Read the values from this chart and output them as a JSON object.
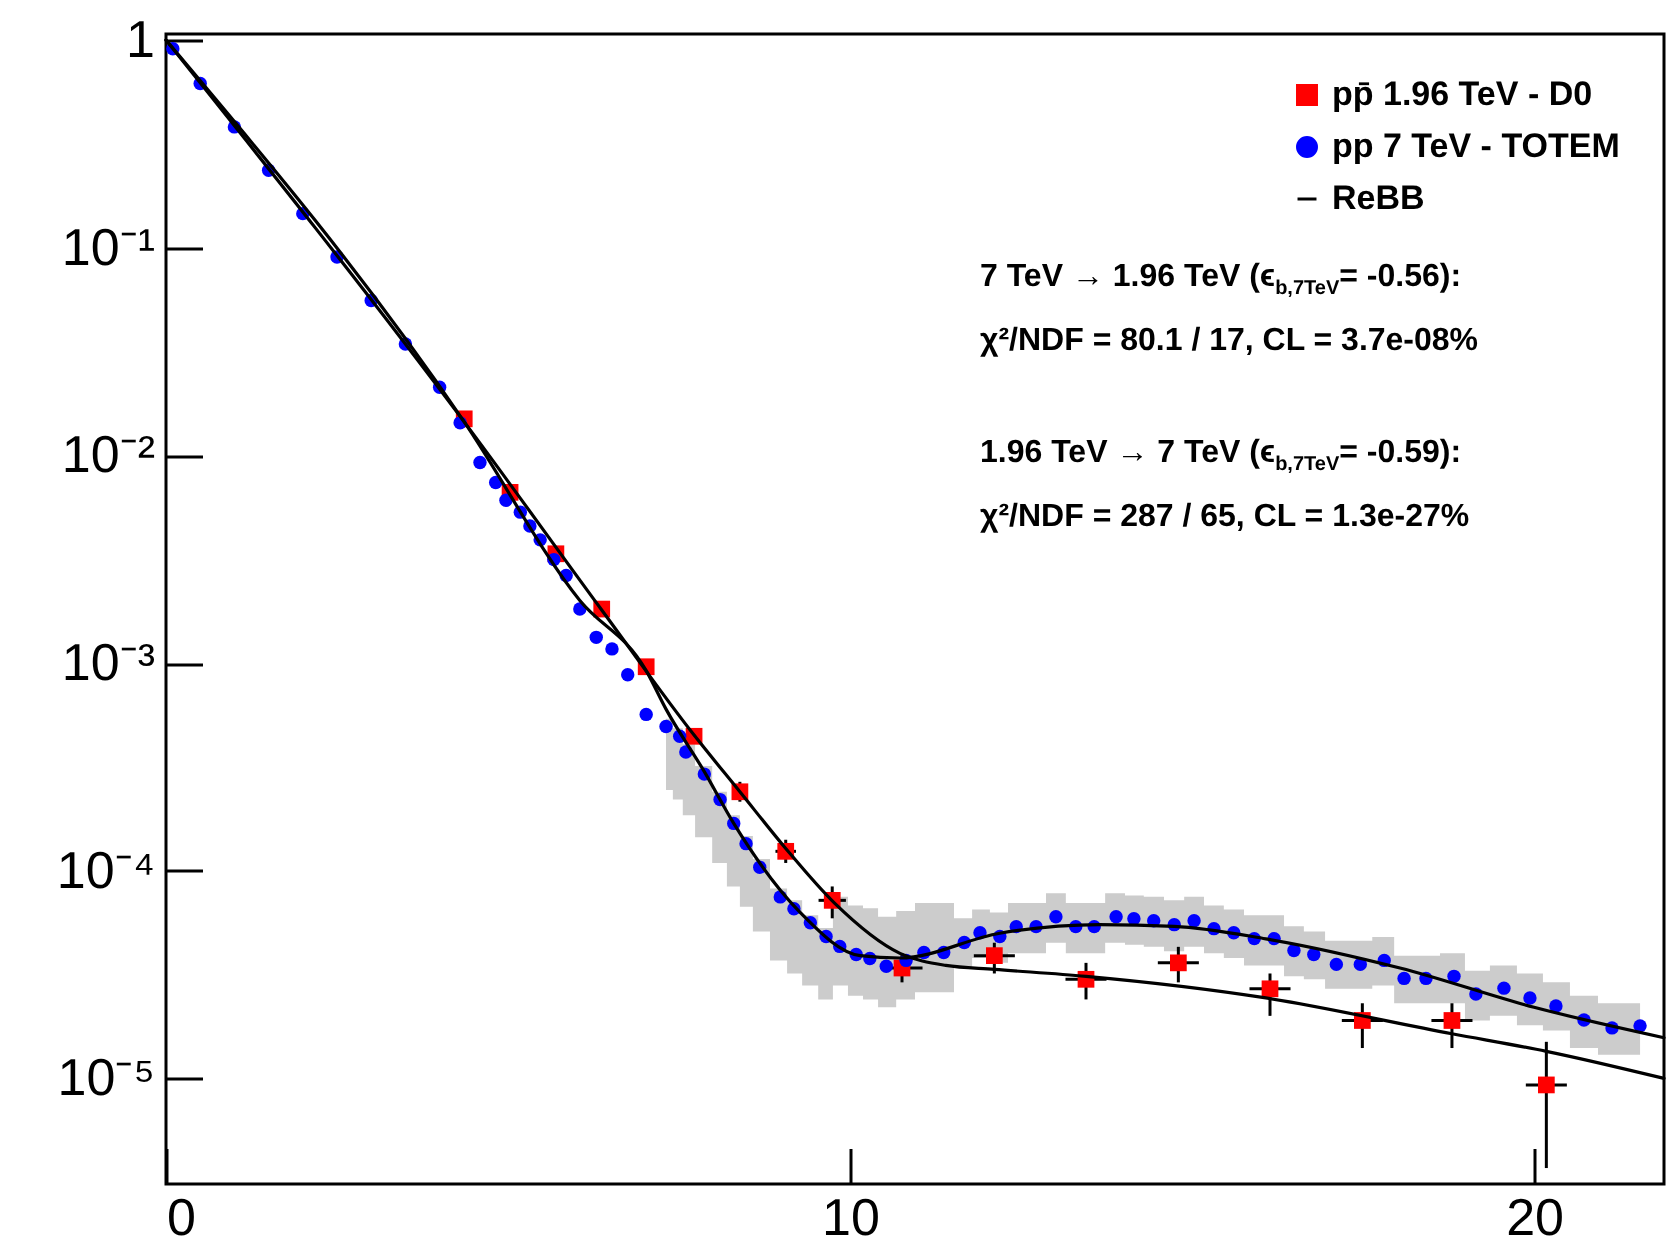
{
  "chart_data": {
    "type": "scatter",
    "log": "y",
    "xlim": [
      0,
      21.9
    ],
    "ylim": [
      3.1e-06,
      1.07
    ],
    "xticks": [
      0,
      10,
      20
    ],
    "yticks": [
      1,
      {
        "value": 0.1,
        "label": "10⁻¹"
      },
      {
        "value": 0.01,
        "label": "10⁻²"
      },
      {
        "value": 0.001,
        "label": "10⁻³"
      },
      {
        "value": 0.0001,
        "label": "10⁻⁴"
      },
      {
        "value": 1e-05,
        "label": "10⁻⁵"
      }
    ],
    "legend": "top right",
    "annotations": [
      "7 TeV → 1.96 TeV (ϵ$_{b,7TeV}$= -0.56):",
      "χ²/NDF = 80.1 / 17,  CL = 3.7e-08%",
      "1.96 TeV → 7 TeV  (ϵ$_{b,7TeV}$= -0.59):",
      "χ²/NDF = 287 / 65,  CL = 1.3e-27%"
    ],
    "series": [
      {
        "name": "pp̄ 1.96 TeV - D0",
        "marker": "square",
        "color": "#ff0000",
        "x": [
          4.36,
          5.03,
          5.7,
          6.37,
          7.02,
          7.72,
          8.39,
          9.06,
          9.74,
          10.76,
          12.11,
          13.45,
          14.8,
          16.14,
          17.49,
          18.8,
          20.18
        ],
        "values": [
          0.015,
          0.00664,
          0.00336,
          0.00182,
          0.00096,
          0.000444,
          0.00024,
          0.000124,
          7.2e-05,
          3.4e-05,
          3.9e-05,
          3e-05,
          3.6e-05,
          2.7e-05,
          1.9e-05,
          1.9e-05,
          9.3e-06
        ],
        "errors": [
          [
            0.014,
            0.0161
          ],
          [
            0.0062,
            0.0071
          ],
          [
            0.00315,
            0.0036
          ],
          [
            0.0017,
            0.00195
          ],
          [
            0.0009,
            0.00103
          ],
          [
            0.000415,
            0.000475
          ],
          [
            0.000215,
            0.000268
          ],
          [
            0.000109,
            0.000141
          ],
          [
            5.9e-05,
            8.4e-05
          ],
          [
            2.9e-05,
            4e-05
          ],
          [
            3.2e-05,
            4.5e-05
          ],
          [
            2.4e-05,
            3.6e-05
          ],
          [
            2.9e-05,
            4.3e-05
          ],
          [
            2e-05,
            3.2e-05
          ],
          [
            1.4e-05,
            2.3e-05
          ],
          [
            1.4e-05,
            2.3e-05
          ],
          [
            3.7e-06,
            1.5e-05
          ]
        ],
        "xerrors": [
          null,
          null,
          null,
          null,
          null,
          null,
          null,
          0.15,
          0.2,
          0.3,
          0.3,
          0.3,
          0.3,
          0.3,
          0.3,
          0.3,
          0.3
        ]
      },
      {
        "name": "pp 7 TeV - TOTEM",
        "marker": "circle",
        "color": "#0000ff",
        "x": [
          0.1,
          0.5,
          1.0,
          1.5,
          2.0,
          2.5,
          3.0,
          3.5,
          4.0,
          4.3,
          4.59,
          4.82,
          4.97,
          5.18,
          5.32,
          5.47,
          5.67,
          5.85,
          6.05,
          6.29,
          6.52,
          6.75,
          7.02,
          7.31,
          7.51,
          7.6,
          7.87,
          8.1,
          8.3,
          8.48,
          8.68,
          8.98,
          9.18,
          9.42,
          9.65,
          9.85,
          10.09,
          10.29,
          10.53,
          10.82,
          11.08,
          11.37,
          11.67,
          11.9,
          12.19,
          12.43,
          12.72,
          13.01,
          13.3,
          13.57,
          13.89,
          14.15,
          14.44,
          14.74,
          15.03,
          15.32,
          15.61,
          15.91,
          16.2,
          16.49,
          16.78,
          17.11,
          17.46,
          17.81,
          18.1,
          18.42,
          18.83,
          19.15,
          19.56,
          19.94,
          20.32,
          20.73,
          21.14,
          21.55
        ],
        "values": [
          0.908,
          0.618,
          0.382,
          0.236,
          0.146,
          0.0902,
          0.0557,
          0.0344,
          0.0213,
          0.01435,
          0.00924,
          0.00741,
          0.00608,
          0.00533,
          0.00457,
          0.00392,
          0.00315,
          0.00264,
          0.00182,
          0.00133,
          0.00117,
          0.000879,
          0.000566,
          0.000495,
          0.000444,
          0.000373,
          0.000292,
          0.00022,
          0.000169,
          0.000135,
          0.000104,
          7.48e-05,
          6.56e-05,
          5.62e-05,
          4.82e-05,
          4.32e-05,
          3.95e-05,
          3.78e-05,
          3.47e-05,
          3.7e-05,
          4.04e-05,
          4.04e-05,
          4.51e-05,
          5.03e-05,
          4.82e-05,
          5.38e-05,
          5.38e-05,
          6e-05,
          5.38e-05,
          5.38e-05,
          6e-05,
          5.87e-05,
          5.74e-05,
          5.5e-05,
          5.74e-05,
          5.26e-05,
          5.03e-05,
          4.71e-05,
          4.71e-05,
          4.13e-05,
          3.95e-05,
          3.54e-05,
          3.54e-05,
          3.7e-05,
          3.03e-05,
          3.03e-05,
          3.1e-05,
          2.55e-05,
          2.72e-05,
          2.44e-05,
          2.23e-05,
          1.91e-05,
          1.75e-05,
          1.79e-05
        ],
        "upper": [
          null,
          null,
          null,
          null,
          null,
          null,
          null,
          null,
          null,
          null,
          null,
          null,
          null,
          null,
          null,
          null,
          null,
          null,
          null,
          null,
          null,
          null,
          null,
          0.00054,
          0.000485,
          0.000407,
          0.000319,
          0.00024,
          0.000185,
          0.000147,
          0.000114,
          8.2e-05,
          7.2e-05,
          6.1e-05,
          5.3e-05,
          7.5e-05,
          6.8e-05,
          6.6e-05,
          6e-05,
          6.4e-05,
          7e-05,
          7e-05,
          5.9e-05,
          6.5e-05,
          6.3e-05,
          7e-05,
          7e-05,
          7.8e-05,
          7e-05,
          7e-05,
          7.8e-05,
          7.6e-05,
          7.5e-05,
          7.2e-05,
          7.5e-05,
          6.8e-05,
          6.5e-05,
          6.1e-05,
          6.1e-05,
          5.4e-05,
          5.1e-05,
          4.6e-05,
          4.6e-05,
          4.8e-05,
          3.9e-05,
          3.9e-05,
          4e-05,
          3.3e-05,
          3.5e-05,
          3.2e-05,
          2.9e-05,
          2.5e-05,
          2.3e-05,
          2.3e-05
        ],
        "lower": [
          null,
          null,
          null,
          null,
          null,
          null,
          null,
          null,
          null,
          null,
          null,
          null,
          null,
          null,
          null,
          null,
          null,
          null,
          null,
          null,
          null,
          null,
          null,
          0.000245,
          0.00022,
          0.000185,
          0.000145,
          0.000109,
          8.4e-05,
          6.7e-05,
          5.1e-05,
          3.7e-05,
          3.2e-05,
          2.8e-05,
          2.4e-05,
          2.8e-05,
          2.5e-05,
          2.4e-05,
          2.2e-05,
          2.4e-05,
          2.6e-05,
          2.6e-05,
          3.4e-05,
          3.8e-05,
          3.6e-05,
          4e-05,
          4e-05,
          4.5e-05,
          4e-05,
          4e-05,
          4.5e-05,
          4.4e-05,
          4.3e-05,
          4.1e-05,
          4.3e-05,
          4e-05,
          3.8e-05,
          3.5e-05,
          3.5e-05,
          3.1e-05,
          3e-05,
          2.7e-05,
          2.7e-05,
          2.8e-05,
          2.3e-05,
          2.3e-05,
          2.3e-05,
          1.9e-05,
          2e-05,
          1.8e-05,
          1.7e-05,
          1.4e-05,
          1.3e-05,
          1.3e-05
        ]
      },
      {
        "name": "ReBB",
        "type": "line",
        "color": "#000000",
        "x": [
          0,
          4.36,
          6.37,
          7.72,
          8.39,
          9.06,
          9.77,
          10.73,
          11.4,
          12.11,
          13.45,
          16.08,
          18.8,
          20.18,
          21.9
        ],
        "values": [
          1,
          0.0145,
          0.0018,
          0.00045,
          0.00024,
          0.000128,
          7e-05,
          4e-05,
          3.5e-05,
          3.35e-05,
          3.1e-05,
          2.44e-05,
          1.64e-05,
          1.35e-05,
          1e-05
        ]
      },
      {
        "type": "line",
        "color": "#000000",
        "x": [
          0,
          4.36,
          6.05,
          7.02,
          7.31,
          7.87,
          8.3,
          9.27,
          10.15,
          10.73,
          12.19,
          13.65,
          14.74,
          16.08,
          18.04,
          20.0,
          21.9
        ],
        "values": [
          1,
          0.0145,
          0.002,
          0.00092,
          0.0006,
          0.0003,
          0.000169,
          6.3e-05,
          3.9e-05,
          3.8e-05,
          5e-05,
          5.5e-05,
          5.4e-05,
          4.7e-05,
          3.4e-05,
          2.2e-05,
          1.57e-05
        ]
      }
    ]
  }
}
